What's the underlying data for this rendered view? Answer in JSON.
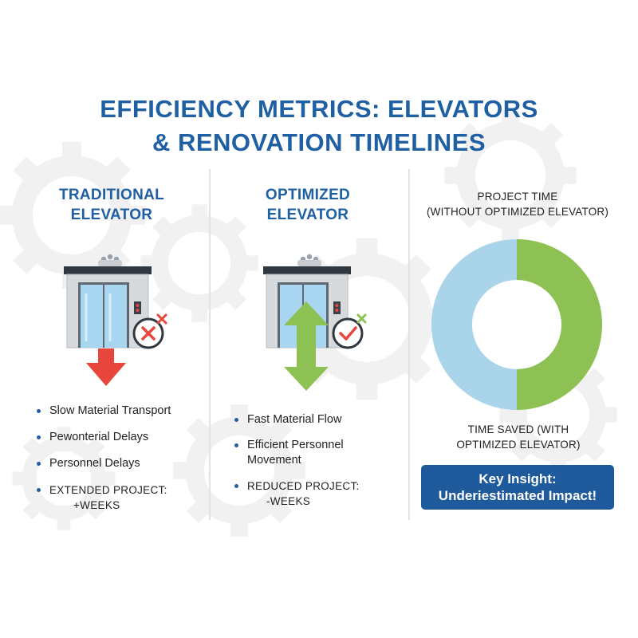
{
  "title": {
    "line1": "EFFICIENCY METRICS: ELEVATORS",
    "line2": "& RENOVATION TIMELINES"
  },
  "traditional": {
    "heading_line1": "TRADITIONAL",
    "heading_line2": "ELEVATOR",
    "status_icon": "x-circle-icon",
    "arrow": "down-arrow",
    "bullets": [
      {
        "text": "Slow Material Transport"
      },
      {
        "text": "Pewonterial Delays"
      },
      {
        "text": "Personnel Delays"
      },
      {
        "line1": "EXTENDED PROJECT:",
        "line2": "+WEEKS"
      }
    ]
  },
  "optimized": {
    "heading_line1": "OPTIMIZED",
    "heading_line2": "ELEVATOR",
    "status_icon": "check-circle-icon",
    "arrow": "up-down-arrow",
    "bullets": [
      {
        "text": "Fast Material Flow"
      },
      {
        "line1": "Efficient Personnel",
        "line2": "Movement"
      },
      {
        "line1": "REDUCED PROJECT:",
        "line2": "-WEEKS"
      }
    ]
  },
  "donut": {
    "top_label_line1": "PROJECT TIME",
    "top_label_line2": "(WITHOUT OPTIMIZED ELEVATOR)",
    "bottom_label_line1": "TIME SAVED (WITH",
    "bottom_label_line2": "OPTIMIZED ELEVATOR)",
    "segments": [
      {
        "share": 0.5,
        "color": "#8dc153"
      },
      {
        "share": 0.5,
        "color": "#a9d4ea"
      }
    ]
  },
  "insight": {
    "line1": "Key Insight:",
    "line2": "Underiestimated Impact!"
  },
  "colors": {
    "title_blue": "#1f5fa3",
    "down_red": "#e8453c",
    "up_green": "#8dc153",
    "insight_bg": "#1e5a9c"
  }
}
